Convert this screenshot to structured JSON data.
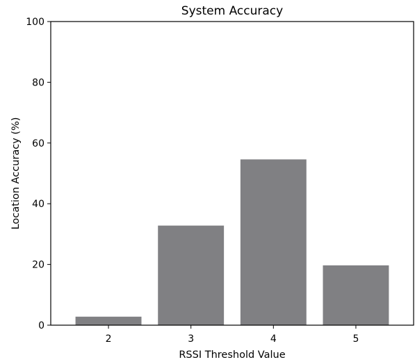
{
  "chart_data": {
    "type": "bar",
    "title": "System Accuracy",
    "xlabel": "RSSI Threshold Value",
    "ylabel": "Location Accuracy (%)",
    "categories": [
      "2",
      "3",
      "4",
      "5"
    ],
    "values": [
      2.8,
      32.8,
      54.6,
      19.7
    ],
    "ylim": [
      0,
      100
    ],
    "yticks": [
      "0",
      "20",
      "40",
      "60",
      "80",
      "100"
    ],
    "grid": false,
    "bar_color": "#808083"
  }
}
